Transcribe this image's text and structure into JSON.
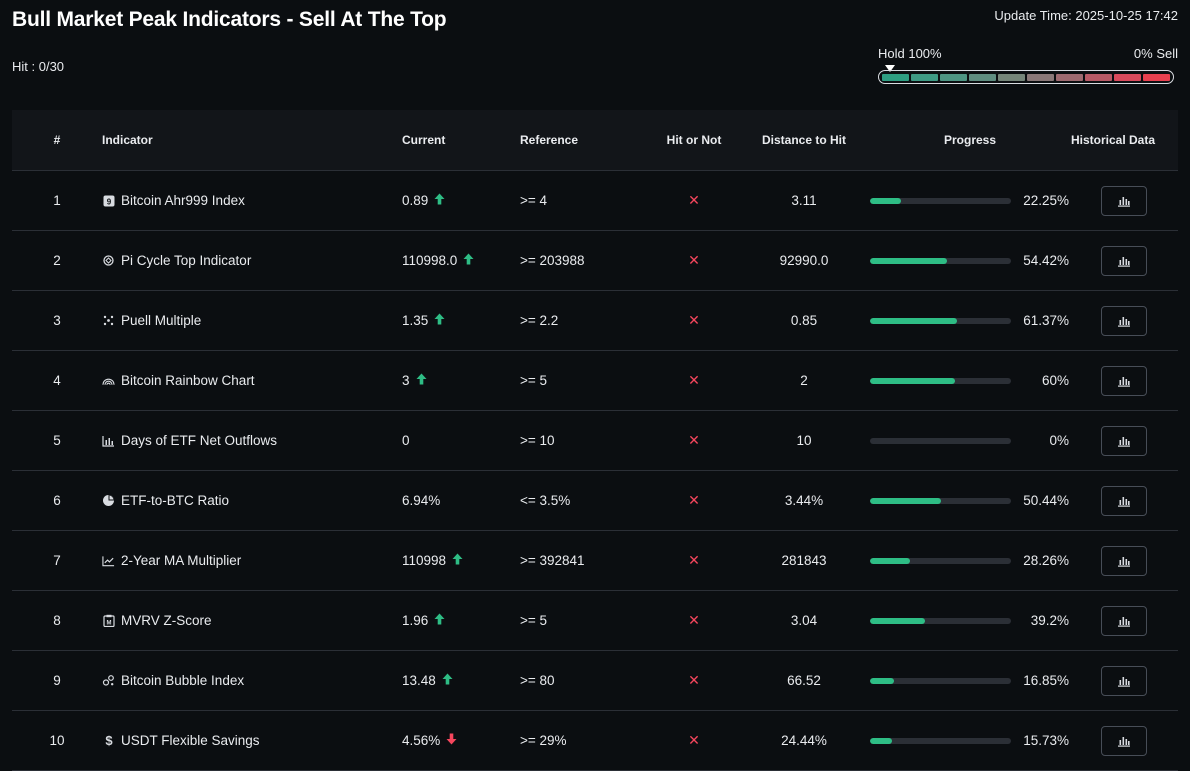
{
  "header": {
    "title": "Bull Market Peak Indicators - Sell At The Top",
    "hit_count": "Hit : 0/30",
    "update_time": "Update Time: 2025-10-25 17:42"
  },
  "gauge": {
    "hold_label": "Hold 100%",
    "sell_label": "0% Sell",
    "segment_colors": [
      "#2e9e82",
      "#3e9a84",
      "#4e9583",
      "#5f8d80",
      "#758579",
      "#8a7878",
      "#9e6a70",
      "#b85a66",
      "#d94a5c",
      "#e8404f"
    ]
  },
  "table": {
    "columns": {
      "num": "#",
      "indicator": "Indicator",
      "current": "Current",
      "reference": "Reference",
      "hit": "Hit or Not",
      "distance": "Distance to Hit",
      "progress": "Progress",
      "historical": "Historical Data"
    },
    "rows": [
      {
        "num": "1",
        "icon": "ahr999-icon",
        "name": "Bitcoin Ahr999 Index",
        "current": "0.89",
        "trend": "up",
        "reference": ">= 4",
        "hit": "✕",
        "distance": "3.11",
        "progress": 0.2225,
        "progress_label": "22.25%"
      },
      {
        "num": "2",
        "icon": "pi-cycle-icon",
        "name": "Pi Cycle Top Indicator",
        "current": "110998.0",
        "trend": "up",
        "reference": ">= 203988",
        "hit": "✕",
        "distance": "92990.0",
        "progress": 0.5442,
        "progress_label": "54.42%"
      },
      {
        "num": "3",
        "icon": "puell-icon",
        "name": "Puell Multiple",
        "current": "1.35",
        "trend": "up",
        "reference": ">= 2.2",
        "hit": "✕",
        "distance": "0.85",
        "progress": 0.6137,
        "progress_label": "61.37%"
      },
      {
        "num": "4",
        "icon": "rainbow-icon",
        "name": "Bitcoin Rainbow Chart",
        "current": "3",
        "trend": "up",
        "reference": ">= 5",
        "hit": "✕",
        "distance": "2",
        "progress": 0.6,
        "progress_label": "60%"
      },
      {
        "num": "5",
        "icon": "bar-chart-icon",
        "name": "Days of ETF Net Outflows",
        "current": "0",
        "trend": "none",
        "reference": ">= 10",
        "hit": "✕",
        "distance": "10",
        "progress": 0,
        "progress_label": "0%"
      },
      {
        "num": "6",
        "icon": "pie-chart-icon",
        "name": "ETF-to-BTC Ratio",
        "current": "6.94%",
        "trend": "none",
        "reference": "<= 3.5%",
        "hit": "✕",
        "distance": "3.44%",
        "progress": 0.5044,
        "progress_label": "50.44%"
      },
      {
        "num": "7",
        "icon": "line-chart-icon",
        "name": "2-Year MA Multiplier",
        "current": "110998",
        "trend": "up",
        "reference": ">= 392841",
        "hit": "✕",
        "distance": "281843",
        "progress": 0.2826,
        "progress_label": "28.26%"
      },
      {
        "num": "8",
        "icon": "clipboard-icon",
        "name": "MVRV Z-Score",
        "current": "1.96",
        "trend": "up",
        "reference": ">= 5",
        "hit": "✕",
        "distance": "3.04",
        "progress": 0.392,
        "progress_label": "39.2%"
      },
      {
        "num": "9",
        "icon": "bubble-icon",
        "name": "Bitcoin Bubble Index",
        "current": "13.48",
        "trend": "up",
        "reference": ">= 80",
        "hit": "✕",
        "distance": "66.52",
        "progress": 0.1685,
        "progress_label": "16.85%"
      },
      {
        "num": "10",
        "icon": "dollar-icon",
        "name": "USDT Flexible Savings",
        "current": "4.56%",
        "trend": "down",
        "reference": ">= 29%",
        "hit": "✕",
        "distance": "24.44%",
        "progress": 0.1573,
        "progress_label": "15.73%"
      }
    ]
  },
  "colors": {
    "up": "#2ebd85",
    "down": "#f6465d",
    "progress_fill": "#2ebd85",
    "progress_track": "#2b2f36"
  }
}
